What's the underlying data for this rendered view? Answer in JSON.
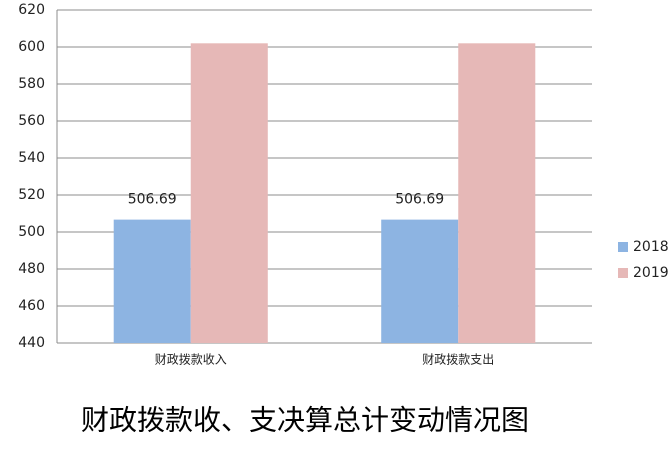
{
  "chart_data": {
    "type": "bar",
    "title": "财政拨款收、支决算总计变动情况图",
    "categories": [
      "财政拨款收入",
      "财政拨款支出"
    ],
    "series": [
      {
        "name": "2018",
        "color": "#8db4e2",
        "values": [
          506.69,
          506.69
        ],
        "show_labels": true
      },
      {
        "name": "2019",
        "color": "#e6b8b7",
        "values": [
          602,
          602
        ],
        "show_labels": false
      }
    ],
    "ylim": [
      440,
      620
    ],
    "yticks": [
      440,
      460,
      480,
      500,
      520,
      540,
      560,
      580,
      600,
      620
    ],
    "grid": true,
    "legend": "right"
  }
}
